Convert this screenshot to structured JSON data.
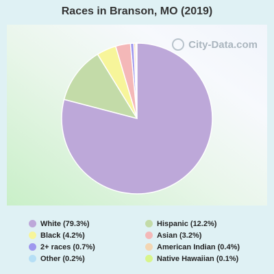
{
  "title": "Races in Branson, MO (2019)",
  "watermark": "City-Data.com",
  "chart_data": {
    "type": "pie",
    "title": "Races in Branson, MO (2019)",
    "slices": [
      {
        "label": "White (79.3%)",
        "value": 79.3,
        "color": "#bda8d9"
      },
      {
        "label": "Hispanic (12.2%)",
        "value": 12.2,
        "color": "#c3dba8"
      },
      {
        "label": "Black (4.2%)",
        "value": 4.2,
        "color": "#f7f59a"
      },
      {
        "label": "Asian (3.2%)",
        "value": 3.2,
        "color": "#f4b8b8"
      },
      {
        "label": "2+ races (0.7%)",
        "value": 0.7,
        "color": "#9f98ee"
      },
      {
        "label": "American Indian (0.4%)",
        "value": 0.4,
        "color": "#f3d6b3"
      },
      {
        "label": "Other (0.2%)",
        "value": 0.2,
        "color": "#b6dff5"
      },
      {
        "label": "Native Hawaiian (0.1%)",
        "value": 0.1,
        "color": "#d8f58a"
      }
    ],
    "legend_order": [
      "White (79.3%)",
      "Hispanic (12.2%)",
      "Black (4.2%)",
      "Asian (3.2%)",
      "2+ races (0.7%)",
      "American Indian (0.4%)",
      "Other (0.2%)",
      "Native Hawaiian (0.1%)"
    ],
    "legend_position": "bottom"
  }
}
